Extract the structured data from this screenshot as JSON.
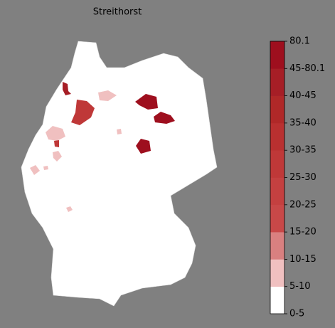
{
  "title": "Streithorst",
  "colorbar": {
    "labels": [
      "0-5",
      "5-10",
      "10-15",
      "15-20",
      "20-25",
      "25-30",
      "30-35",
      "35-40",
      "40-45",
      "45-80.1",
      "80.1"
    ],
    "colors": [
      "#ffffff",
      "#f0c0c0",
      "#d98080",
      "#c84848",
      "#c44040",
      "#bf3838",
      "#b93030",
      "#b02828",
      "#a61e26",
      "#9e0f1e"
    ]
  }
}
